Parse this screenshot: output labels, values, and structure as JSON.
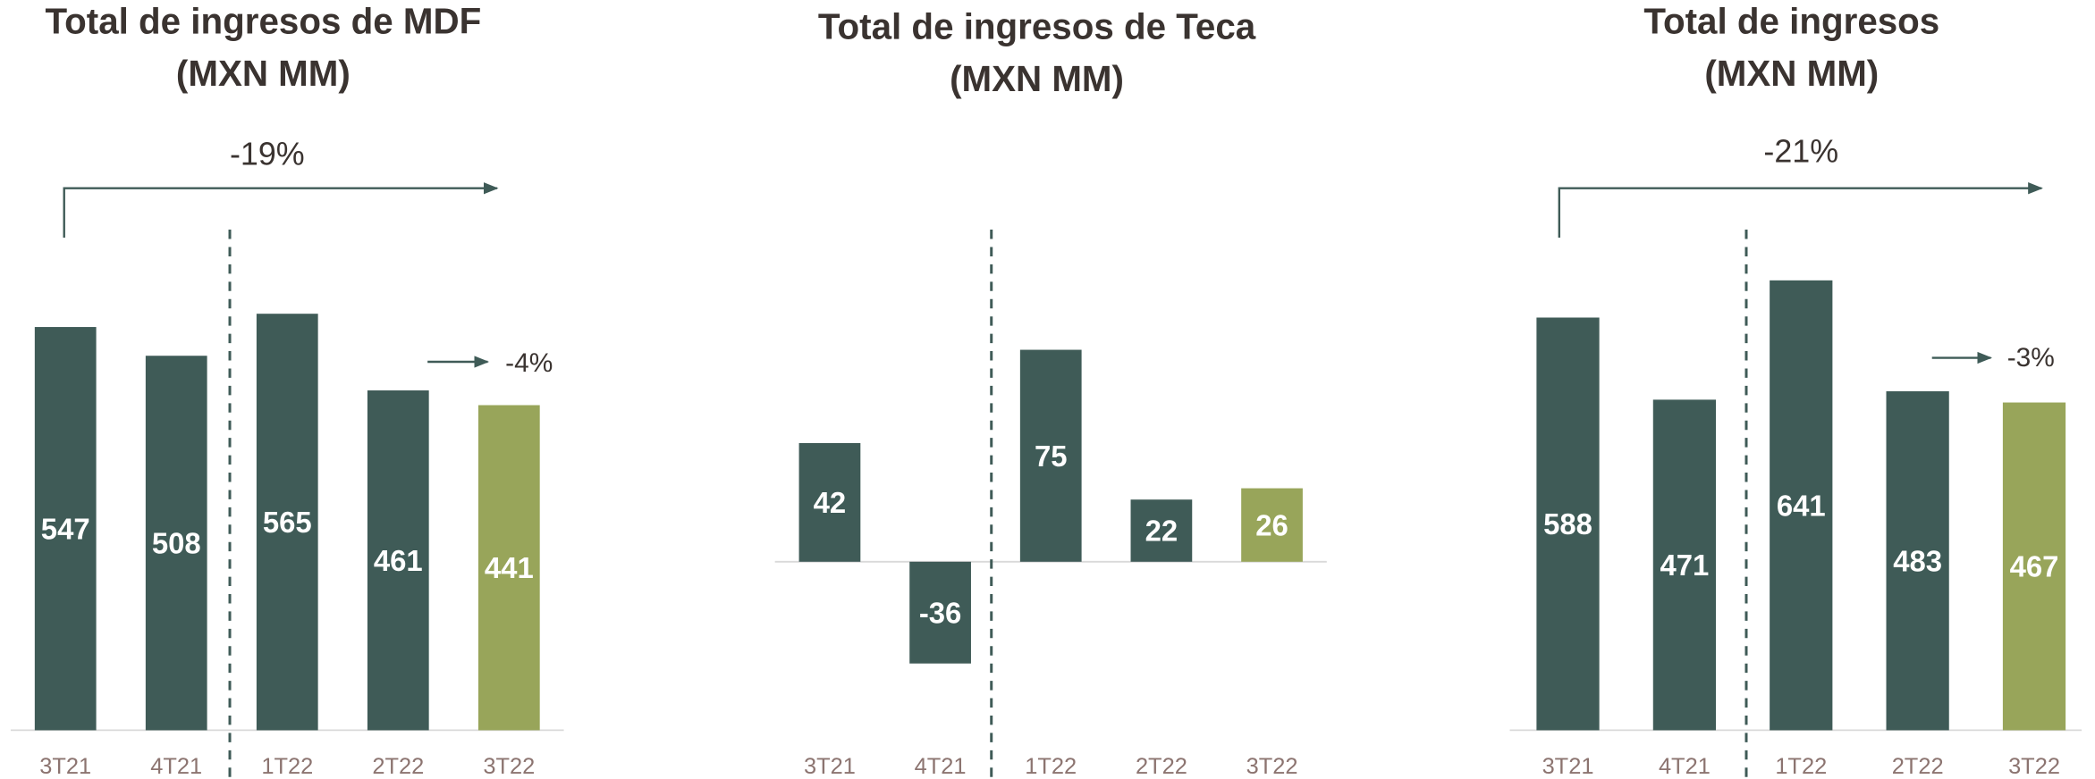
{
  "chart_data": [
    {
      "type": "bar",
      "title": [
        "Total de ingresos de MDF",
        "(MXN MM)"
      ],
      "categories": [
        "3T21",
        "4T21",
        "1T22",
        "2T22",
        "3T22"
      ],
      "values": [
        547,
        508,
        565,
        461,
        441
      ],
      "colors": [
        "#3f5b57",
        "#3f5b57",
        "#3f5b57",
        "#3f5b57",
        "#98a55a"
      ],
      "annotations": [
        "-19%",
        "-4%"
      ]
    },
    {
      "type": "bar",
      "title": [
        "Total de ingresos de Teca",
        "(MXN MM)"
      ],
      "categories": [
        "3T21",
        "4T21",
        "1T22",
        "2T22",
        "3T22"
      ],
      "values": [
        42,
        -36,
        75,
        22,
        26
      ],
      "colors": [
        "#3f5b57",
        "#3f5b57",
        "#3f5b57",
        "#3f5b57",
        "#98a55a"
      ],
      "annotations": []
    },
    {
      "type": "bar",
      "title": [
        "Total de ingresos",
        "(MXN MM)"
      ],
      "categories": [
        "3T21",
        "4T21",
        "1T22",
        "2T22",
        "3T22"
      ],
      "values": [
        588,
        471,
        641,
        483,
        467
      ],
      "colors": [
        "#3f5b57",
        "#3f5b57",
        "#3f5b57",
        "#3f5b57",
        "#98a55a"
      ],
      "annotations": [
        "-21%",
        "-3%"
      ]
    }
  ]
}
